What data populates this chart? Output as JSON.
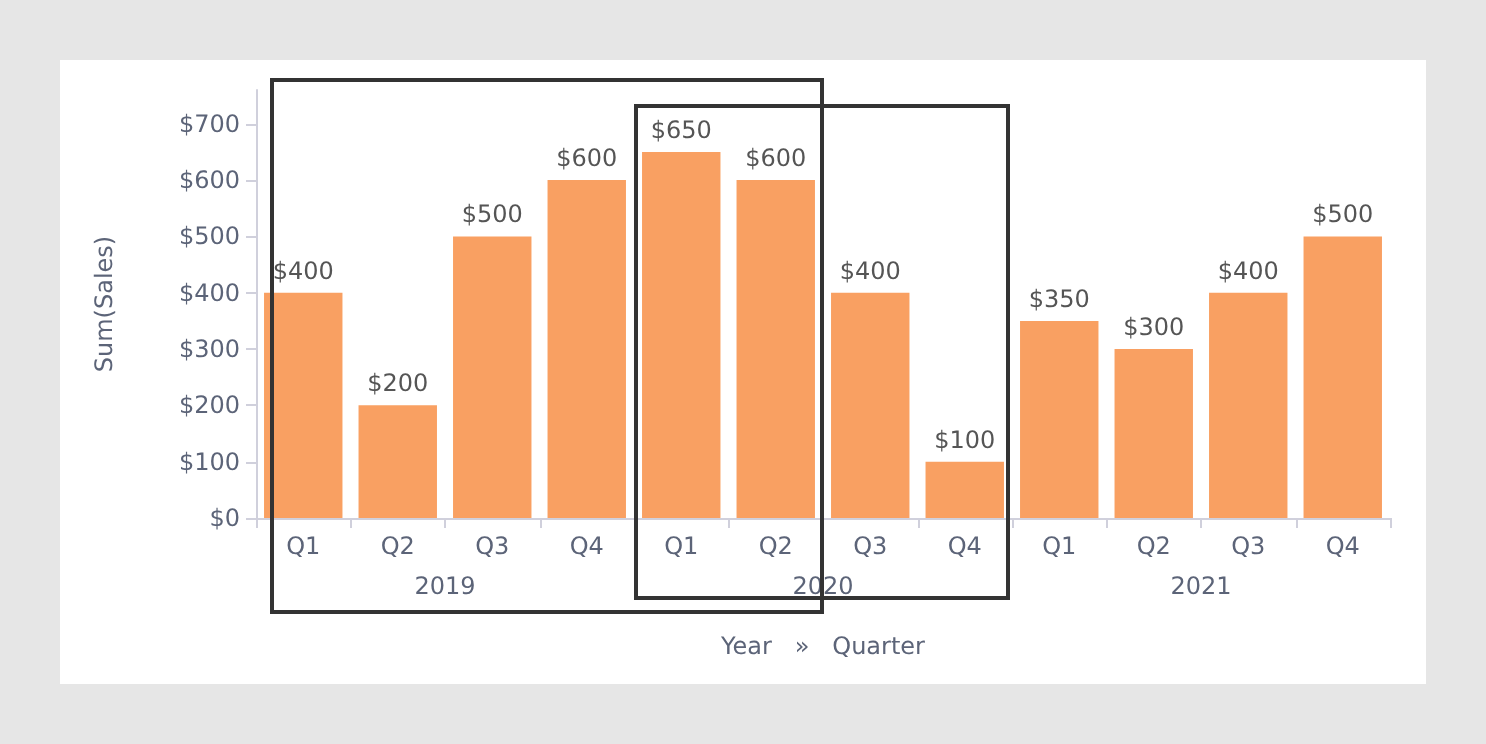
{
  "chart_data": {
    "type": "bar",
    "xlabel": "Year   »   Quarter",
    "ylabel": "Sum(Sales)",
    "categories": [
      "Q1",
      "Q2",
      "Q3",
      "Q4",
      "Q1",
      "Q2",
      "Q3",
      "Q4",
      "Q1",
      "Q2",
      "Q3",
      "Q4"
    ],
    "values": [
      400,
      200,
      500,
      600,
      650,
      600,
      400,
      100,
      350,
      300,
      400,
      500
    ],
    "color": "#f9a062",
    "value_labels": [
      "$400",
      "$200",
      "$500",
      "$600",
      "$650",
      "$600",
      "$400",
      "$100",
      "$350",
      "$300",
      "$400",
      "$500"
    ],
    "annotations": [
      "2019",
      "2020",
      "2021"
    ],
    "ylim": [
      0,
      760
    ],
    "yticks": [
      {
        "value": 0,
        "label": "$0"
      },
      {
        "value": 100,
        "label": "$100"
      },
      {
        "value": 200,
        "label": "$200"
      },
      {
        "value": 300,
        "label": "$300"
      },
      {
        "value": 400,
        "label": "$400"
      },
      {
        "value": 500,
        "label": "$500"
      },
      {
        "value": 600,
        "label": "$600"
      },
      {
        "value": 700,
        "label": "$700"
      }
    ],
    "grid": false
  }
}
